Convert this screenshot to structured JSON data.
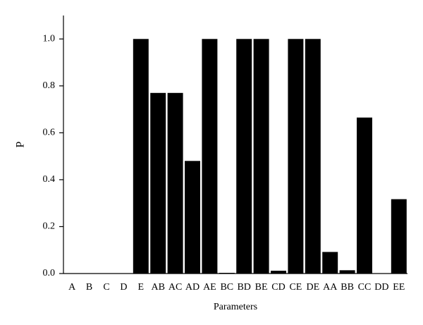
{
  "chart_data": {
    "type": "bar",
    "x_label": "Parameters",
    "y_label": "P",
    "categories": [
      "A",
      "B",
      "C",
      "D",
      "E",
      "AB",
      "AC",
      "AD",
      "AE",
      "BC",
      "BD",
      "BE",
      "CD",
      "CE",
      "DE",
      "AA",
      "BB",
      "CC",
      "DD",
      "EE"
    ],
    "values": [
      0,
      0,
      0,
      0,
      1.0,
      0.77,
      0.77,
      0.48,
      1.0,
      0.003,
      1.0,
      1.0,
      0.012,
      1.0,
      1.0,
      0.092,
      0.014,
      0.665,
      0,
      0.317
    ],
    "color": "#000000",
    "ylim": [
      0,
      1.1
    ],
    "yticks": [
      {
        "value": 0,
        "label": "0.0"
      },
      {
        "value": 0.2,
        "label": "0.2"
      },
      {
        "value": 0.4,
        "label": "0.4"
      },
      {
        "value": 0.6,
        "label": "0.6"
      },
      {
        "value": 0.8,
        "label": "0.8"
      },
      {
        "value": 1.0,
        "label": "1.0"
      }
    ],
    "grid": false
  }
}
